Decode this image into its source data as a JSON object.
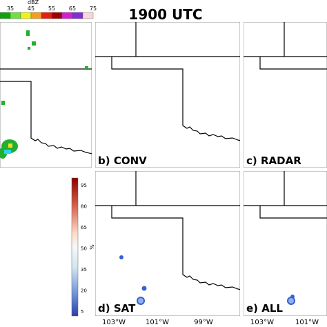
{
  "title": "1900 UTC",
  "top_colorbar": {
    "label": "dBZ",
    "ticks": [
      35,
      45,
      55,
      65,
      75
    ]
  },
  "panels": [
    {
      "label": "b) CONV"
    },
    {
      "label": "c) RADAR"
    },
    {
      "label": "d) SAT"
    },
    {
      "label": "e) ALL"
    }
  ],
  "side_colorbar": {
    "unit": "%",
    "ticks": [
      95,
      80,
      65,
      50,
      35,
      20,
      5
    ]
  },
  "lon_labels": [
    "103°W",
    "101°W",
    "99°W",
    "103°W",
    "101°W"
  ]
}
